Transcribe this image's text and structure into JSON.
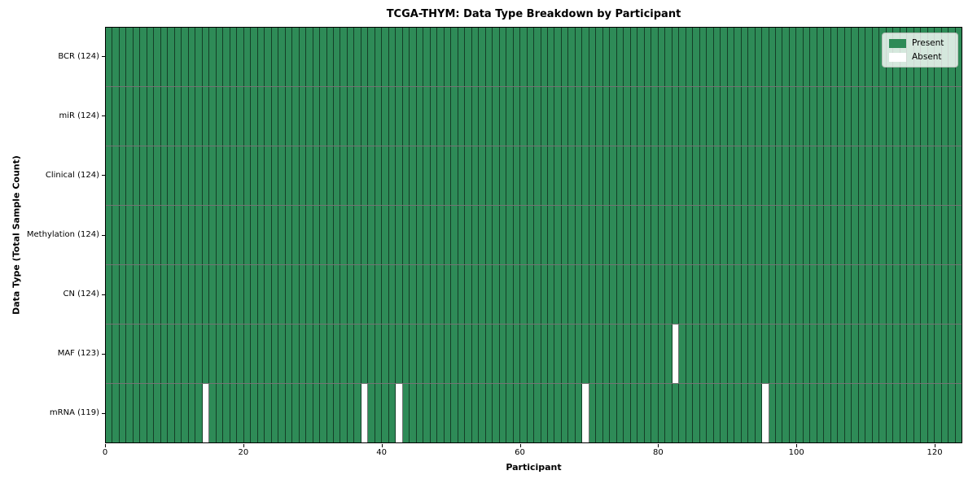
{
  "chart_data": {
    "type": "heatmap",
    "title": "TCGA-THYM: Data Type Breakdown by Participant",
    "xlabel": "Participant",
    "ylabel": "Data Type (Total Sample Count)",
    "n_participants": 124,
    "x_ticks": [
      0,
      20,
      40,
      60,
      80,
      100,
      120
    ],
    "xlim": [
      0,
      124
    ],
    "grid": "cell borders on",
    "legend_position": "upper right",
    "rows": [
      {
        "label": "BCR (124)",
        "data_type": "BCR",
        "present_count": 124,
        "absent_participants": []
      },
      {
        "label": "miR (124)",
        "data_type": "miR",
        "present_count": 124,
        "absent_participants": []
      },
      {
        "label": "Clinical (124)",
        "data_type": "Clinical",
        "present_count": 124,
        "absent_participants": []
      },
      {
        "label": "Methylation (124)",
        "data_type": "Methylation",
        "present_count": 124,
        "absent_participants": []
      },
      {
        "label": "CN (124)",
        "data_type": "CN",
        "present_count": 124,
        "absent_participants": []
      },
      {
        "label": "MAF (123)",
        "data_type": "MAF",
        "present_count": 123,
        "absent_participants": [
          82
        ]
      },
      {
        "label": "mRNA (119)",
        "data_type": "mRNA",
        "present_count": 119,
        "absent_participants": [
          14,
          37,
          42,
          69,
          95
        ]
      }
    ],
    "legend": [
      {
        "label": "Present",
        "color": "#2e8b57"
      },
      {
        "label": "Absent",
        "color": "#ffffff"
      }
    ],
    "colors": {
      "present": "#2e8b57",
      "absent": "#ffffff",
      "cell_border": "rgba(0,0,0,0.55)",
      "spine": "#000000"
    }
  }
}
